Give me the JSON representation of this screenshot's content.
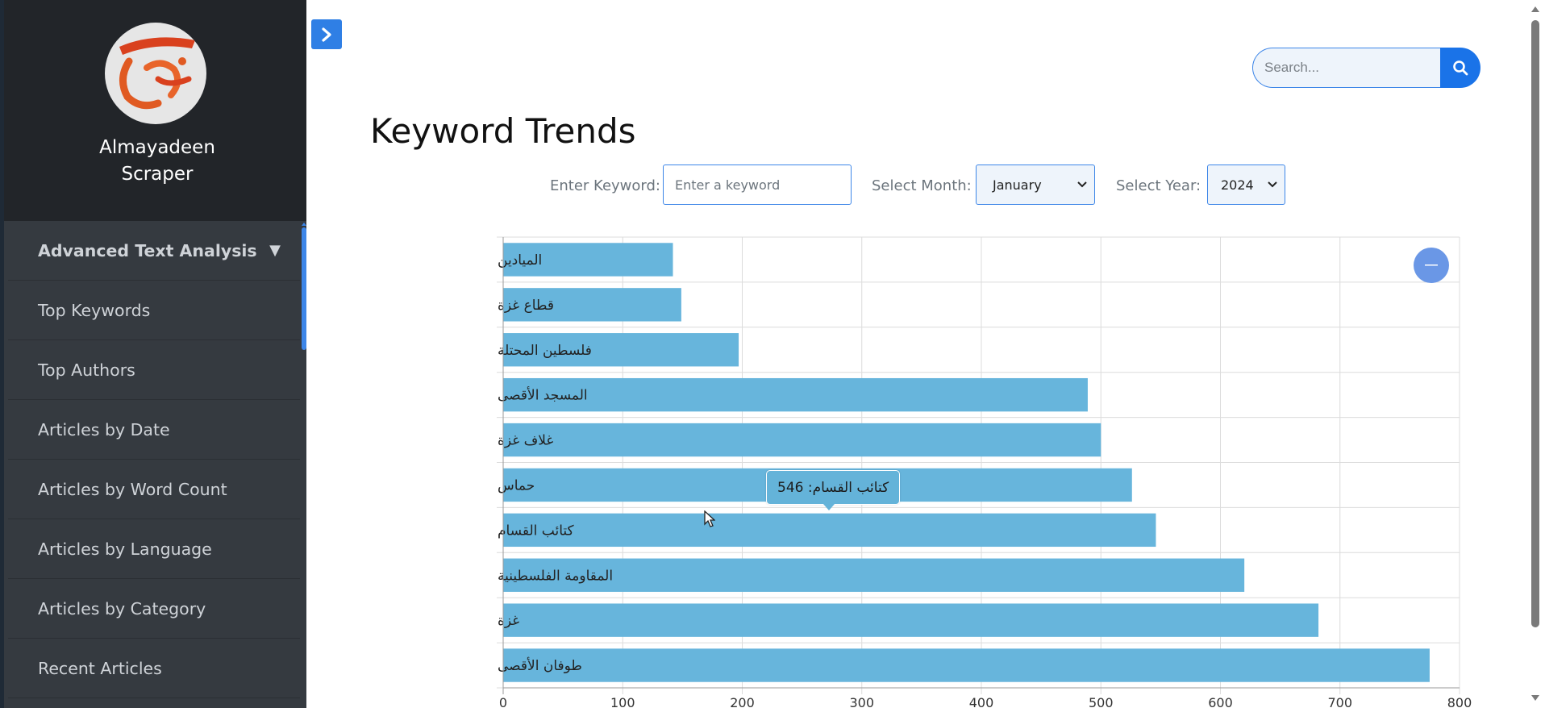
{
  "app": {
    "name": "Almayadeen Scraper",
    "logo_icon": "almayadeen-logo-icon"
  },
  "sidebar": {
    "items": [
      {
        "label": "Advanced Text Analysis",
        "expanded": true,
        "caret": "▼"
      },
      {
        "label": "Top Keywords"
      },
      {
        "label": "Top Authors"
      },
      {
        "label": "Articles by Date"
      },
      {
        "label": "Articles by Word Count"
      },
      {
        "label": "Articles by Language"
      },
      {
        "label": "Articles by Category"
      },
      {
        "label": "Recent Articles"
      }
    ]
  },
  "header": {
    "search_placeholder": "Search...",
    "search_icon": "search-icon",
    "toggle_icon": "chevron-right-icon"
  },
  "main": {
    "title": "Keyword Trends",
    "filters": {
      "keyword_label": "Enter Keyword:",
      "keyword_placeholder": "Enter a keyword",
      "keyword_value": "",
      "month_label": "Select Month:",
      "month_value": "January",
      "year_label": "Select Year:",
      "year_value": "2024"
    }
  },
  "colors": {
    "bar": "#67b5dc",
    "accent": "#1a73e8",
    "sidebar": "#353a40",
    "sidebar_header": "#222529"
  },
  "chart_data": {
    "type": "bar",
    "orientation": "horizontal",
    "categories": [
      "الميادين",
      "قطاع غزة",
      "فلسطين المحتلة",
      "المسجد الأقصى",
      "غلاف غزة",
      "حماس",
      "كتائب القسام",
      "المقاومة الفلسطينية",
      "غزة",
      "طوفان الأقصى"
    ],
    "values": [
      142,
      149,
      197,
      489,
      500,
      526,
      546,
      620,
      682,
      775
    ],
    "xlim": [
      0,
      800
    ],
    "xticks": [
      "0",
      "100",
      "200",
      "300",
      "400",
      "500",
      "600",
      "700",
      "800"
    ],
    "grid": true,
    "tooltip": {
      "category_index": 6,
      "text": "كتائب القسام: 546"
    }
  }
}
